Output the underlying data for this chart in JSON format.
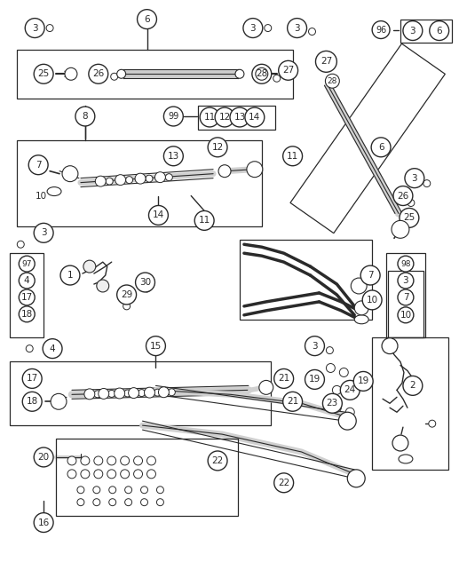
{
  "bg_color": "#ffffff",
  "lc": "#2a2a2a",
  "fig_width": 5.17,
  "fig_height": 6.42,
  "dpi": 100
}
